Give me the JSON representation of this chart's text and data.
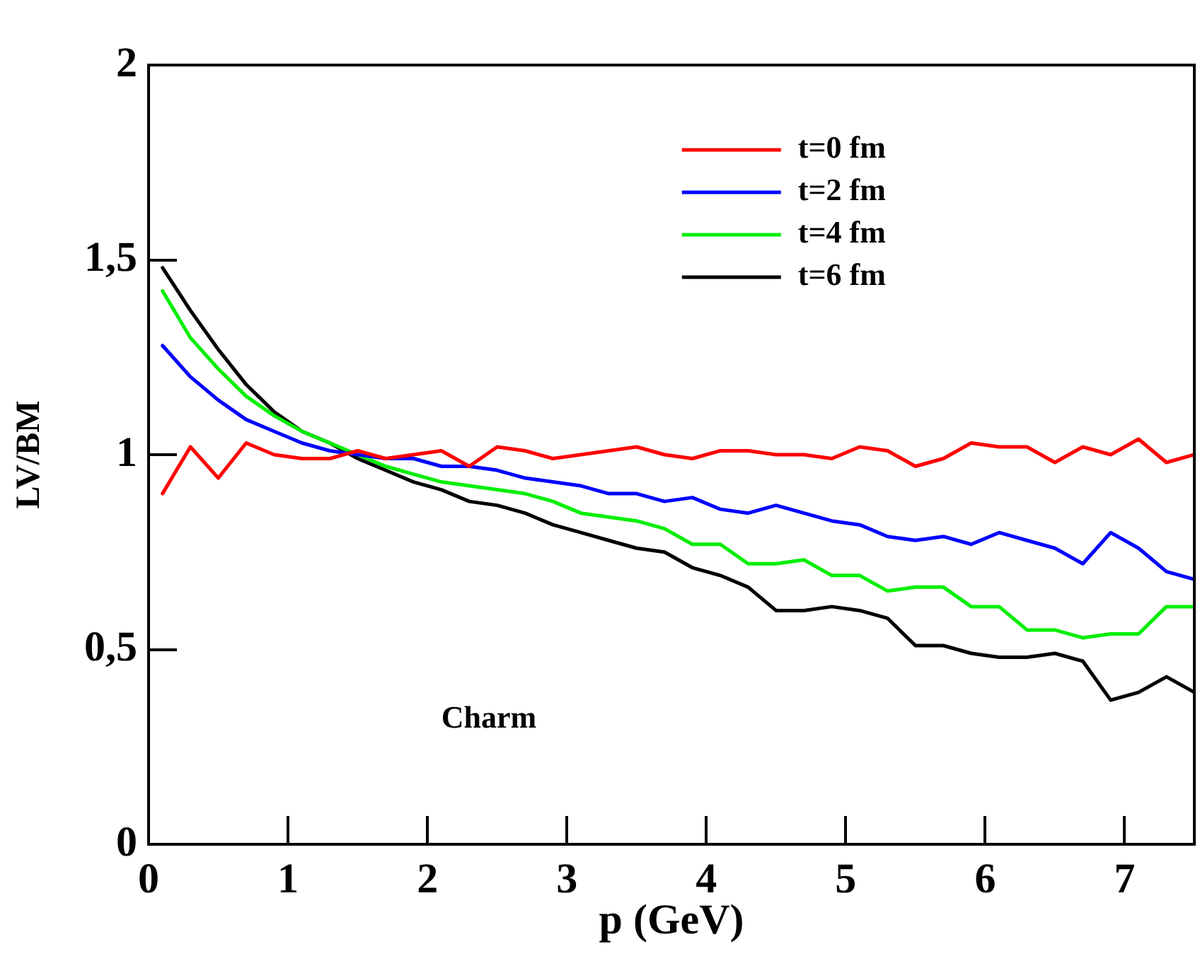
{
  "chart_data": {
    "type": "line",
    "xlabel": "p (GeV)",
    "ylabel": "LV/BM",
    "annotations": [
      "Charm"
    ],
    "x": [
      0.1,
      0.3,
      0.5,
      0.7,
      0.9,
      1.1,
      1.3,
      1.5,
      1.7,
      1.9,
      2.1,
      2.3,
      2.5,
      2.7,
      2.9,
      3.1,
      3.3,
      3.5,
      3.7,
      3.9,
      4.1,
      4.3,
      4.5,
      4.7,
      4.9,
      5.1,
      5.3,
      5.5,
      5.7,
      5.9,
      6.1,
      6.3,
      6.5,
      6.7,
      6.9,
      7.1,
      7.3,
      7.5
    ],
    "series": [
      {
        "name": "t=0 fm",
        "color": "#ff0000",
        "values": [
          0.9,
          1.02,
          0.94,
          1.03,
          1.0,
          0.99,
          0.99,
          1.01,
          0.99,
          1.0,
          1.01,
          0.97,
          1.02,
          1.01,
          0.99,
          1.0,
          1.01,
          1.02,
          1.0,
          0.99,
          1.01,
          1.01,
          1.0,
          1.0,
          0.99,
          1.02,
          1.01,
          0.97,
          0.99,
          1.03,
          1.02,
          1.02,
          0.98,
          1.02,
          1.0,
          1.04,
          0.98,
          1.0
        ]
      },
      {
        "name": "t=2 fm",
        "color": "#0000ff",
        "values": [
          1.28,
          1.2,
          1.14,
          1.09,
          1.06,
          1.03,
          1.01,
          1.0,
          0.99,
          0.99,
          0.97,
          0.97,
          0.96,
          0.94,
          0.93,
          0.92,
          0.9,
          0.9,
          0.88,
          0.89,
          0.86,
          0.85,
          0.87,
          0.85,
          0.83,
          0.82,
          0.79,
          0.78,
          0.79,
          0.77,
          0.8,
          0.78,
          0.76,
          0.72,
          0.8,
          0.76,
          0.7,
          0.68
        ]
      },
      {
        "name": "t=4 fm",
        "color": "#00ee00",
        "values": [
          1.42,
          1.3,
          1.22,
          1.15,
          1.1,
          1.06,
          1.03,
          1.0,
          0.97,
          0.95,
          0.93,
          0.92,
          0.91,
          0.9,
          0.88,
          0.85,
          0.84,
          0.83,
          0.81,
          0.77,
          0.77,
          0.72,
          0.72,
          0.73,
          0.69,
          0.69,
          0.65,
          0.66,
          0.66,
          0.61,
          0.61,
          0.55,
          0.55,
          0.53,
          0.54,
          0.54,
          0.61,
          0.61
        ]
      },
      {
        "name": "t=6 fm",
        "color": "#000000",
        "values": [
          1.48,
          1.37,
          1.27,
          1.18,
          1.11,
          1.06,
          1.03,
          0.99,
          0.96,
          0.93,
          0.91,
          0.88,
          0.87,
          0.85,
          0.82,
          0.8,
          0.78,
          0.76,
          0.75,
          0.71,
          0.69,
          0.66,
          0.6,
          0.6,
          0.61,
          0.6,
          0.58,
          0.51,
          0.51,
          0.49,
          0.48,
          0.48,
          0.49,
          0.47,
          0.37,
          0.39,
          0.43,
          0.39
        ]
      }
    ],
    "xlim": [
      0,
      7.5
    ],
    "xticks": [
      0,
      1,
      2,
      3,
      4,
      5,
      6,
      7
    ],
    "ylim": [
      0,
      2
    ],
    "yticks": [
      0,
      {
        "value": 0.5,
        "label": "0,5"
      },
      1,
      {
        "value": 1.5,
        "label": "1,5"
      },
      2
    ],
    "grid": false,
    "legend": "top right",
    "marker": "none",
    "line_style": "solid"
  }
}
